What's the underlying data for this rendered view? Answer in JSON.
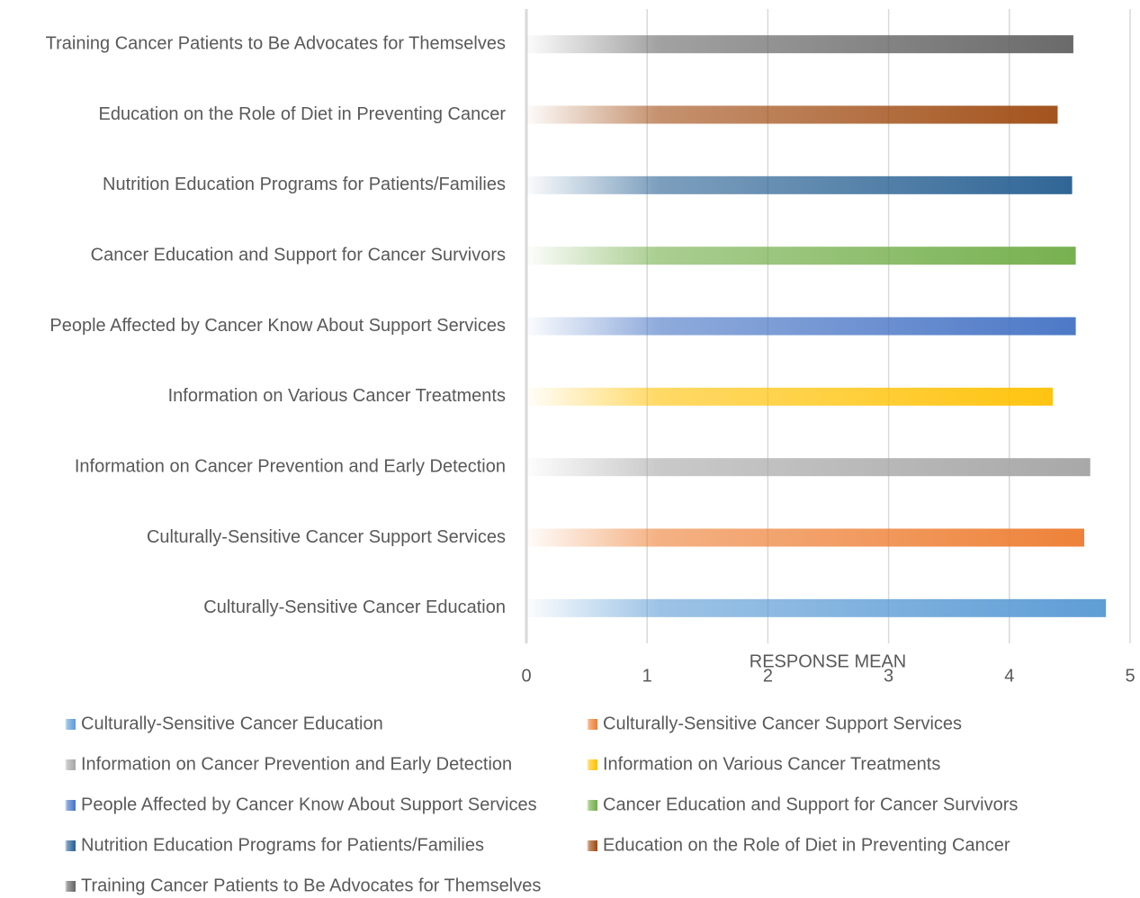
{
  "chart_data": {
    "type": "bar",
    "orientation": "horizontal",
    "xlabel": "RESPONSE MEAN",
    "categories": [
      "Culturally-Sensitive Cancer Education",
      "Culturally-Sensitive Cancer Support Services",
      "Information on Cancer Prevention and Early Detection",
      "Information on Various Cancer Treatments",
      "People Affected by Cancer Know About Support Services",
      "Cancer Education and Support for Cancer Survivors",
      "Nutrition Education Programs for Patients/Families",
      "Education on the Role of Diet in Preventing Cancer",
      "Training Cancer Patients to Be Advocates for Themselves"
    ],
    "values": [
      4.8,
      4.62,
      4.67,
      4.36,
      4.55,
      4.55,
      4.52,
      4.4,
      4.53
    ],
    "colors": [
      "#5b9bd5",
      "#ed7d31",
      "#a5a5a5",
      "#ffc000",
      "#4472c4",
      "#70ad47",
      "#255e91",
      "#9e480e",
      "#636363"
    ],
    "xlim": [
      0,
      5
    ],
    "xticks": [
      0,
      1,
      2,
      3,
      4,
      5
    ],
    "grid": true,
    "legend": "bottom"
  }
}
